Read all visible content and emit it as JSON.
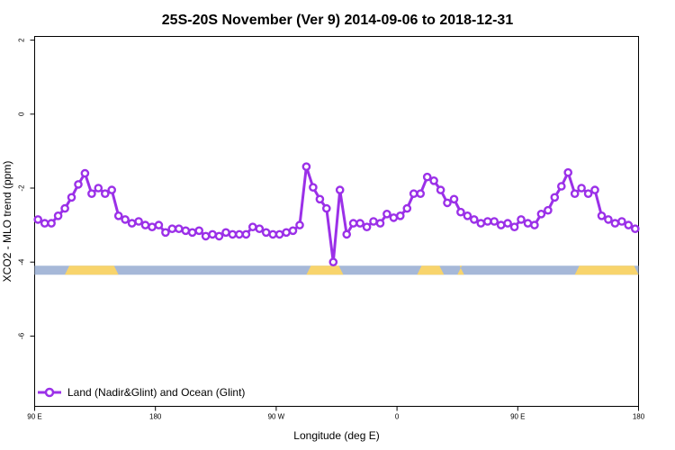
{
  "chart_data": {
    "type": "line",
    "title": "25S-20S November (Ver 9)   2014-09-06 to 2018-12-31",
    "xlabel": "Longitude (deg E)",
    "ylabel": "XCO2 - MLO trend (ppm)",
    "xlim": [
      90,
      450
    ],
    "ylim": [
      -7.9,
      2.1
    ],
    "x_ticks": [
      {
        "value": 90,
        "label": "90 E"
      },
      {
        "value": 162,
        "label": "180"
      },
      {
        "value": 234,
        "label": "90 W"
      },
      {
        "value": 306,
        "label": "0"
      },
      {
        "value": 378,
        "label": "90 E"
      },
      {
        "value": 450,
        "label": "180"
      }
    ],
    "y_ticks": [
      {
        "value": 2,
        "label": "2"
      },
      {
        "value": 0,
        "label": "0"
      },
      {
        "value": -2,
        "label": "-2"
      },
      {
        "value": -4,
        "label": "-4"
      },
      {
        "value": -6,
        "label": "-6"
      }
    ],
    "grid": false,
    "legend": "bottom-left",
    "series": [
      {
        "name": "Land (Nadir&Glint) and Ocean (Glint)",
        "color": "#9b30e8",
        "x": [
          92,
          96,
          100,
          104,
          108,
          112,
          116,
          120,
          124,
          128,
          132,
          136,
          140,
          144,
          148,
          152,
          156,
          160,
          164,
          168,
          172,
          176,
          180,
          184,
          188,
          192,
          196,
          200,
          204,
          208,
          212,
          216,
          220,
          224,
          228,
          232,
          236,
          240,
          244,
          248,
          252,
          256,
          260,
          264,
          268,
          272,
          276,
          280,
          284,
          288,
          292,
          296,
          300,
          304,
          308,
          312,
          316,
          320,
          324,
          328,
          332,
          336,
          340,
          344,
          348,
          352,
          356,
          360,
          364,
          368,
          372,
          376,
          380,
          384,
          388,
          392,
          396,
          400,
          404,
          408,
          412,
          416,
          420,
          424,
          428,
          432,
          436,
          440,
          444,
          448
        ],
        "y": [
          -2.85,
          -2.95,
          -2.95,
          -2.75,
          -2.55,
          -2.25,
          -1.9,
          -1.6,
          -2.15,
          -2.0,
          -2.15,
          -2.05,
          -2.75,
          -2.85,
          -2.95,
          -2.9,
          -3.0,
          -3.05,
          -3.0,
          -3.2,
          -3.1,
          -3.1,
          -3.15,
          -3.2,
          -3.15,
          -3.3,
          -3.25,
          -3.3,
          -3.2,
          -3.25,
          -3.25,
          -3.25,
          -3.05,
          -3.1,
          -3.2,
          -3.25,
          -3.25,
          -3.2,
          -3.15,
          -3.0,
          -1.42,
          -1.98,
          -2.3,
          -2.55,
          -4.0,
          -2.05,
          -3.25,
          -2.95,
          -2.95,
          -3.05,
          -2.9,
          -2.95,
          -2.7,
          -2.8,
          -2.75,
          -2.55,
          -2.15,
          -2.15,
          -1.7,
          -1.8,
          -2.05,
          -2.4,
          -2.3,
          -2.65,
          -2.75,
          -2.85,
          -2.95,
          -2.9,
          -2.9,
          -3.0,
          -2.95,
          -3.05,
          -2.85,
          -2.95,
          -3.0,
          -2.7,
          -2.6,
          -2.25,
          -1.95,
          -1.58,
          -2.15,
          -2.0,
          -2.15,
          -2.05,
          -2.75,
          -2.85,
          -2.95,
          -2.9,
          -3.0,
          -3.1
        ]
      }
    ],
    "surface_strip": {
      "y_center": -4.22,
      "ocean_color": "#a6b8d8",
      "land_color": "#f8d46c",
      "land_ranges": [
        [
          108,
          140
        ],
        [
          252,
          274
        ],
        [
          318,
          334
        ],
        [
          342,
          346
        ],
        [
          412,
          458
        ]
      ]
    }
  }
}
